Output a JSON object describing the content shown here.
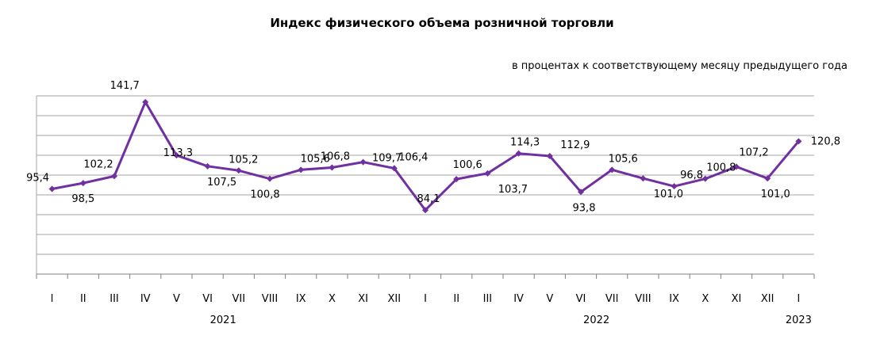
{
  "chart_data": {
    "type": "line",
    "title": "Индекс физического объема розничной торговли",
    "subtitle": "в процентах к соответствующему месяцу предыдущего года",
    "categories": [
      "I",
      "II",
      "III",
      "IV",
      "V",
      "VI",
      "VII",
      "VIII",
      "IX",
      "X",
      "XI",
      "XII",
      "I",
      "II",
      "III",
      "IV",
      "V",
      "VI",
      "VII",
      "VIII",
      "IX",
      "X",
      "XI",
      "XII",
      "I"
    ],
    "years": [
      {
        "label": "2021",
        "from": 0,
        "to": 11
      },
      {
        "label": "2022",
        "from": 12,
        "to": 23
      },
      {
        "label": "2023",
        "from": 24,
        "to": 24
      }
    ],
    "series": [
      {
        "values": [
          95.4,
          98.5,
          102.2,
          141.7,
          113.3,
          107.5,
          105.2,
          100.8,
          105.6,
          106.8,
          109.7,
          106.4,
          84.1,
          100.6,
          103.7,
          114.3,
          112.9,
          93.8,
          105.6,
          101.0,
          96.8,
          100.8,
          107.2,
          101.0,
          120.8
        ],
        "labels": [
          "95,4",
          "98,5",
          "102,2",
          "141,7",
          "113,3",
          "107,5",
          "105,2",
          "100,8",
          "105,6",
          "106,8",
          "109,7",
          "106,4",
          "84,1",
          "100,6",
          "103,7",
          "114,3",
          "112,9",
          "93,8",
          "105,6",
          "101,0",
          "96,8",
          "100,8",
          "107,2",
          "101,0",
          "120,8"
        ],
        "color": "#7030a0"
      }
    ],
    "ylim": [
      50,
      145
    ],
    "grid": true,
    "legend": false
  }
}
